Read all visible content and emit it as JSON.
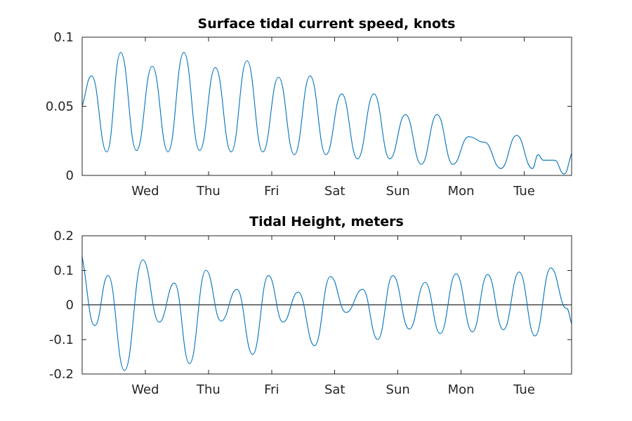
{
  "chart_data": [
    {
      "type": "line",
      "title": "Surface tidal current speed, knots",
      "xlabel": "",
      "ylabel": "",
      "x_unit": "days",
      "xlim": [
        0,
        7.75
      ],
      "ylim": [
        0,
        0.1
      ],
      "grid": false,
      "x_ticks": [
        {
          "x": 1,
          "label": "Wed"
        },
        {
          "x": 2,
          "label": "Thu"
        },
        {
          "x": 3,
          "label": "Fri"
        },
        {
          "x": 4,
          "label": "Sat"
        },
        {
          "x": 5,
          "label": "Sun"
        },
        {
          "x": 6,
          "label": "Mon"
        },
        {
          "x": 7,
          "label": "Tue"
        }
      ],
      "y_ticks": [
        {
          "y": 0,
          "label": "0"
        },
        {
          "y": 0.05,
          "label": "0.05"
        },
        {
          "y": 0.1,
          "label": "0.1"
        }
      ],
      "color": "#0072BD",
      "series": [
        {
          "x": [
            0.0,
            0.15,
            0.39,
            0.61,
            0.86,
            1.11,
            1.36,
            1.61,
            1.86,
            2.11,
            2.36,
            2.61,
            2.86,
            3.11,
            3.36,
            3.61,
            3.86,
            4.11,
            4.36,
            4.62,
            4.87,
            5.12,
            5.37,
            5.62,
            5.87,
            6.12,
            6.37,
            6.63,
            6.88,
            7.13,
            7.22,
            7.3,
            7.48,
            7.63,
            7.75
          ],
          "values": [
            0.05,
            0.072,
            0.017,
            0.089,
            0.018,
            0.079,
            0.017,
            0.089,
            0.018,
            0.078,
            0.017,
            0.083,
            0.017,
            0.071,
            0.015,
            0.072,
            0.015,
            0.059,
            0.012,
            0.059,
            0.012,
            0.044,
            0.008,
            0.044,
            0.008,
            0.028,
            0.024,
            0.005,
            0.029,
            0.005,
            0.015,
            0.011,
            0.011,
            0.001,
            0.016
          ]
        }
      ]
    },
    {
      "type": "line",
      "title": "Tidal Height, meters",
      "xlabel": "",
      "ylabel": "",
      "x_unit": "days",
      "xlim": [
        0,
        7.75
      ],
      "ylim": [
        -0.2,
        0.2
      ],
      "grid": false,
      "zero_line": true,
      "x_ticks": [
        {
          "x": 1,
          "label": "Wed"
        },
        {
          "x": 2,
          "label": "Thu"
        },
        {
          "x": 3,
          "label": "Fri"
        },
        {
          "x": 4,
          "label": "Sat"
        },
        {
          "x": 5,
          "label": "Sun"
        },
        {
          "x": 6,
          "label": "Mon"
        },
        {
          "x": 7,
          "label": "Tue"
        }
      ],
      "y_ticks": [
        {
          "y": -0.2,
          "label": "-0.2"
        },
        {
          "y": -0.1,
          "label": "-0.1"
        },
        {
          "y": 0,
          "label": "0"
        },
        {
          "y": 0.1,
          "label": "0.1"
        },
        {
          "y": 0.2,
          "label": "0.2"
        }
      ],
      "color": "#0072BD",
      "series": [
        {
          "x": [
            0.0,
            0.2,
            0.41,
            0.67,
            0.96,
            1.22,
            1.46,
            1.7,
            1.96,
            2.2,
            2.45,
            2.7,
            2.95,
            3.18,
            3.42,
            3.68,
            3.93,
            4.18,
            4.44,
            4.68,
            4.92,
            5.18,
            5.43,
            5.67,
            5.92,
            6.18,
            6.42,
            6.67,
            6.92,
            7.17,
            7.42,
            7.67,
            7.75
          ],
          "values": [
            0.14,
            -0.06,
            0.085,
            -0.19,
            0.13,
            -0.05,
            0.063,
            -0.17,
            0.1,
            -0.047,
            0.045,
            -0.143,
            0.085,
            -0.05,
            0.037,
            -0.118,
            0.082,
            -0.022,
            0.045,
            -0.1,
            0.085,
            -0.07,
            0.065,
            -0.083,
            0.09,
            -0.078,
            0.088,
            -0.072,
            0.095,
            -0.09,
            0.107,
            -0.01,
            -0.055
          ]
        }
      ]
    }
  ]
}
